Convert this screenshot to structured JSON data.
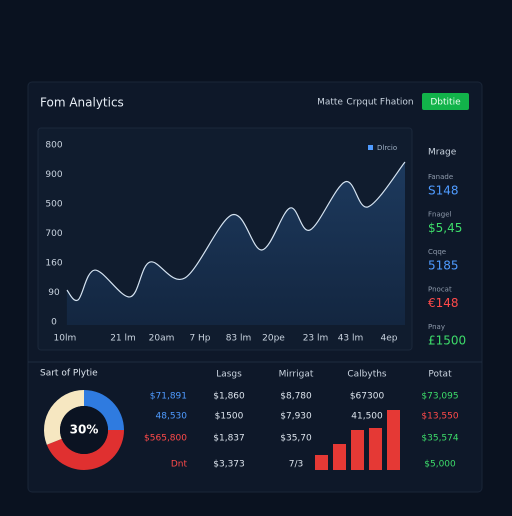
{
  "header": {
    "title": "Fom Analytics",
    "links": [
      "Matte",
      "Crpqut Fhation"
    ],
    "button": "Dbtitie"
  },
  "sidebar": {
    "title": "Mrage",
    "items": [
      {
        "label": "Fanade",
        "value": "S148",
        "color": "#4f9bff"
      },
      {
        "label": "Fnagel",
        "value": "$5,45",
        "color": "#3ddc6a"
      },
      {
        "label": "Cqqe",
        "value": "5185",
        "color": "#4f9bff"
      },
      {
        "label": "Pnocat",
        "value": "€148",
        "color": "#ff4a4a"
      },
      {
        "label": "Pnay",
        "value": "£1500",
        "color": "#3ddc6a"
      }
    ]
  },
  "table": {
    "columns": [
      {
        "cells": [
          "$71,891",
          "48,530",
          "$565,800",
          "Dnt"
        ],
        "colors": [
          "#4f9bff",
          "#4f9bff",
          "#ff4a4a",
          "#ff4a4a"
        ]
      },
      {
        "header": "Lasgs",
        "cells": [
          "$1,860",
          "$1500",
          "$1,837",
          "$3,373"
        ]
      },
      {
        "header": "Mirrigat",
        "cells": [
          "$8,780",
          "$7,930",
          "$35,70",
          "7/3"
        ]
      },
      {
        "header": "Calbyths",
        "cells": [
          "$67300",
          "41,500"
        ]
      },
      {
        "header": "Potat",
        "cells": [
          "$73,095",
          "$13,550",
          "$35,574",
          "$5,000"
        ],
        "colors": [
          "#3ddc6a",
          "#ff4a4a",
          "#3ddc6a",
          "#3ddc6a"
        ]
      }
    ]
  },
  "chart_data": [
    {
      "type": "line",
      "xlim": [
        0,
        10
      ],
      "ylim": [
        0,
        6.2
      ],
      "xticks": [
        {
          "value": 0.14,
          "label": "10lm"
        },
        {
          "value": 1.8,
          "label": "21 lm"
        },
        {
          "value": 2.9,
          "label": "20am"
        },
        {
          "value": 4.0,
          "label": "7 Hp"
        },
        {
          "value": 5.1,
          "label": "83 lm"
        },
        {
          "value": 6.1,
          "label": "20pe"
        },
        {
          "value": 7.3,
          "label": "23 lm"
        },
        {
          "value": 8.3,
          "label": "43 lm"
        },
        {
          "value": 9.4,
          "label": "4ep"
        }
      ],
      "yticks": [
        {
          "value": 0,
          "label": "0"
        },
        {
          "value": 1,
          "label": "90"
        },
        {
          "value": 2,
          "label": "160"
        },
        {
          "value": 3,
          "label": "700"
        },
        {
          "value": 4,
          "label": "500"
        },
        {
          "value": 5,
          "label": "900"
        },
        {
          "value": 6,
          "label": "800"
        }
      ],
      "x": [
        0.34,
        0.66,
        1.14,
        2.14,
        2.71,
        3.71,
        5.06,
        5.91,
        6.71,
        7.29,
        8.29,
        8.94,
        10
      ],
      "series": [
        {
          "name": "Dlrcio",
          "color": "#d6e4f2",
          "values": [
            1.08,
            0.75,
            1.76,
            0.85,
            2.03,
            1.49,
            3.63,
            2.44,
            3.86,
            3.12,
            4.75,
            3.9,
            5.42
          ]
        }
      ]
    },
    {
      "type": "pie",
      "title": "Sart of Plytie",
      "center_label": "30%",
      "values": [
        25,
        44,
        31
      ],
      "colors": [
        "#2f7be0",
        "#e03030",
        "#f6e7c1"
      ]
    },
    {
      "type": "bar",
      "values": [
        15,
        26,
        40,
        42,
        60
      ],
      "color": "#e53935",
      "ylim": [
        0,
        60
      ]
    }
  ]
}
